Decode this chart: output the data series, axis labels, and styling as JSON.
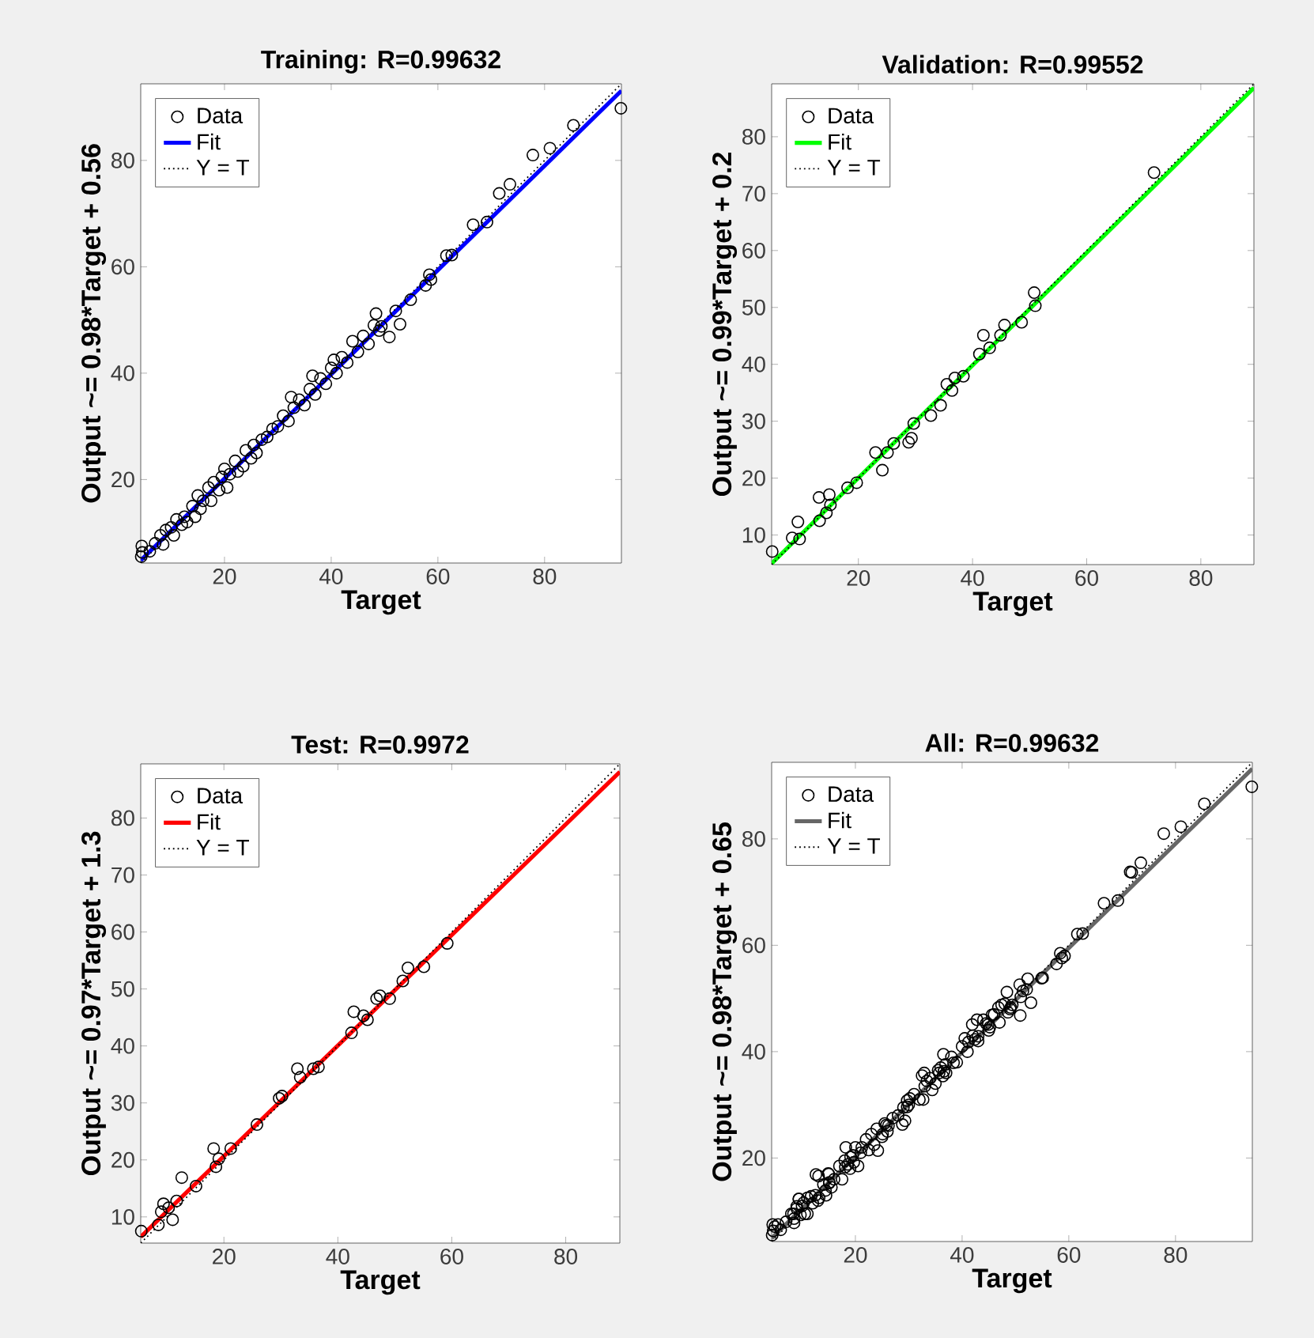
{
  "chart_data": [
    {
      "type": "scatter",
      "title": "Training: R=0.99632",
      "xlabel": "Target",
      "ylabel": "Output ~= 0.98*Target + 0.56",
      "xlim": [
        4.3,
        94.4
      ],
      "ylim": [
        4.3,
        94.4
      ],
      "xticks": [
        20,
        40,
        60,
        80
      ],
      "yticks": [
        20,
        40,
        60,
        80
      ],
      "legend": "top left",
      "series": [
        {
          "name": "Data",
          "type": "scatter",
          "marker": "circle",
          "color": "#000000",
          "x": [
            4.4,
            4.5,
            4.6,
            6,
            7,
            8,
            8.5,
            9,
            10,
            10.5,
            11,
            12,
            12.5,
            13,
            14,
            14.5,
            15,
            15.5,
            16,
            17,
            17.5,
            18,
            19,
            19.5,
            20,
            20.5,
            21,
            22,
            22.5,
            23.5,
            24,
            25,
            25.5,
            26,
            27,
            28,
            29,
            30,
            31,
            32,
            32.5,
            33,
            34,
            35,
            36,
            36.5,
            37,
            38,
            39,
            40,
            40.5,
            41,
            42,
            43,
            44,
            45,
            46,
            47,
            48,
            49,
            48.4,
            49.4,
            50.9,
            52.1,
            52.9,
            54.9,
            57.7,
            58.4,
            58.7,
            61.6,
            62.6,
            66.6,
            69.2,
            71.5,
            73.5,
            77.8,
            81,
            85.4,
            94.3
          ],
          "values": [
            5.5,
            7.5,
            6.3,
            6.5,
            8,
            9.5,
            7.8,
            10.5,
            11,
            9.5,
            12.5,
            11.5,
            13,
            12,
            15,
            13,
            17,
            14.5,
            16,
            18.5,
            16,
            19.5,
            18,
            20.5,
            22,
            18.5,
            21,
            23.5,
            21.5,
            22.5,
            25.5,
            24,
            26.5,
            25,
            27.5,
            28,
            29.5,
            30,
            32,
            31,
            35.5,
            33.5,
            35,
            34,
            37,
            39.5,
            36,
            39,
            38,
            41,
            42.5,
            40,
            43,
            42,
            46,
            44,
            47,
            45.5,
            49,
            48,
            51.2,
            48.8,
            46.8,
            51.7,
            49.2,
            53.8,
            56.5,
            58.5,
            57.6,
            62.1,
            62.2,
            67.9,
            68.4,
            73.8,
            75.5,
            81,
            82.3,
            86.6,
            89.8
          ]
        },
        {
          "name": "Fit",
          "type": "line",
          "line_style": "solid",
          "color": "#0000ff",
          "x": [
            4.3,
            94.4
          ],
          "values": [
            4.8,
            93.1
          ]
        },
        {
          "name": "Y = T",
          "type": "line",
          "line_style": "dotted",
          "color": "#000000",
          "x": [
            4.3,
            94.4
          ],
          "values": [
            4.3,
            94.4
          ]
        }
      ]
    },
    {
      "type": "scatter",
      "title": "Validation: R=0.99552",
      "xlabel": "Target",
      "ylabel": "Output ~= 0.99*Target + 0.2",
      "xlim": [
        4.8,
        89.3
      ],
      "ylim": [
        4.8,
        89.3
      ],
      "xticks": [
        20,
        40,
        60,
        80
      ],
      "yticks": [
        10,
        20,
        30,
        40,
        50,
        60,
        70,
        80
      ],
      "legend": "top left",
      "series": [
        {
          "name": "Data",
          "type": "scatter",
          "marker": "circle",
          "color": "#000000",
          "x": [
            4.9,
            8.4,
            9.4,
            9.7,
            13.1,
            13.2,
            14.9,
            14.4,
            15.1,
            18.1,
            19.7,
            23,
            24.2,
            25.1,
            26.2,
            28.8,
            29.3,
            29.7,
            32.7,
            34.4,
            35.5,
            36.4,
            36.9,
            38.4,
            41.2,
            41.9,
            43,
            44.9,
            45.6,
            48.6,
            50.8,
            51,
            71.8
          ],
          "values": [
            7.1,
            9.5,
            12.3,
            9.3,
            16.6,
            12.5,
            17.1,
            13.9,
            15.3,
            18.3,
            19.2,
            24.5,
            21.4,
            24.5,
            26.1,
            26.3,
            27,
            29.6,
            31,
            32.8,
            36.5,
            35.4,
            37.6,
            37.9,
            41.8,
            45.1,
            42.9,
            45.1,
            46.9,
            47.4,
            52.6,
            50.3,
            73.7
          ]
        },
        {
          "name": "Fit",
          "type": "line",
          "line_style": "solid",
          "color": "#00ff00",
          "x": [
            4.8,
            89.3
          ],
          "values": [
            5,
            88.6
          ]
        },
        {
          "name": "Y = T",
          "type": "line",
          "line_style": "dotted",
          "color": "#000000",
          "x": [
            4.8,
            89.3
          ],
          "values": [
            4.8,
            89.3
          ]
        }
      ]
    },
    {
      "type": "scatter",
      "title": "Test: R=0.9972",
      "xlabel": "Target",
      "ylabel": "Output ~= 0.97*Target + 1.3",
      "xlim": [
        5.4,
        89.5
      ],
      "ylim": [
        5.4,
        89.5
      ],
      "xticks": [
        20,
        40,
        60,
        80
      ],
      "yticks": [
        10,
        20,
        30,
        40,
        50,
        60,
        70,
        80
      ],
      "legend": "top left",
      "series": [
        {
          "name": "Data",
          "type": "scatter",
          "marker": "circle",
          "color": "#000000",
          "x": [
            5.5,
            8.5,
            9,
            9.4,
            10.3,
            11,
            11.7,
            12.6,
            15.1,
            18.2,
            18.6,
            19.1,
            21.2,
            25.8,
            29.7,
            30.2,
            32.9,
            33.4,
            35.7,
            36.6,
            42.4,
            42.8,
            44.5,
            45.2,
            46.8,
            47.4,
            49.1,
            51.4,
            52.3,
            55.1,
            59.2
          ],
          "values": [
            7.5,
            8.6,
            10.9,
            12.3,
            11.6,
            9.5,
            12.8,
            16.9,
            15.4,
            22,
            18.8,
            20.2,
            22,
            26.2,
            30.8,
            31.2,
            36,
            34.5,
            36,
            36.3,
            42.3,
            46,
            45.3,
            44.6,
            48.3,
            48.8,
            48.3,
            51.4,
            53.7,
            53.9,
            58
          ]
        },
        {
          "name": "Fit",
          "type": "line",
          "line_style": "solid",
          "color": "#ff0000",
          "x": [
            5.4,
            89.5
          ],
          "values": [
            6.5,
            88.1
          ]
        },
        {
          "name": "Y = T",
          "type": "line",
          "line_style": "dotted",
          "color": "#000000",
          "x": [
            5.4,
            89.5
          ],
          "values": [
            5.4,
            89.5
          ]
        }
      ]
    },
    {
      "type": "scatter",
      "title": "All: R=0.99632",
      "xlabel": "Target",
      "ylabel": "Output ~= 0.98*Target + 0.65",
      "xlim": [
        4.3,
        94.4
      ],
      "ylim": [
        4.3,
        94.4
      ],
      "xticks": [
        20,
        40,
        60,
        80
      ],
      "yticks": [
        20,
        40,
        60,
        80
      ],
      "legend": "top left",
      "series": [
        {
          "name": "Data",
          "type": "scatter",
          "marker": "circle",
          "color": "#000000",
          "x": [
            4.4,
            4.5,
            4.6,
            6,
            7,
            8,
            8.5,
            9,
            10,
            10.5,
            11,
            12,
            12.5,
            13,
            14,
            14.5,
            15,
            15.5,
            16,
            17,
            17.5,
            18,
            19,
            19.5,
            20,
            20.5,
            21,
            22,
            22.5,
            23.5,
            24,
            25,
            25.5,
            26,
            27,
            28,
            29,
            30,
            31,
            32,
            32.5,
            33,
            34,
            35,
            36,
            36.5,
            37,
            38,
            39,
            40,
            40.5,
            41,
            42,
            43,
            44,
            45,
            46,
            47,
            48,
            49,
            48.4,
            49.4,
            50.9,
            52.1,
            52.9,
            54.9,
            57.7,
            58.4,
            58.7,
            61.6,
            62.6,
            66.6,
            69.2,
            71.5,
            73.5,
            77.8,
            81,
            85.4,
            94.3,
            4.9,
            8.4,
            9.4,
            9.7,
            13.1,
            13.2,
            14.9,
            14.4,
            15.1,
            18.1,
            19.7,
            23,
            24.2,
            25.1,
            26.2,
            28.8,
            29.3,
            29.7,
            32.7,
            34.4,
            35.5,
            36.4,
            36.9,
            38.4,
            41.2,
            41.9,
            43,
            44.9,
            45.6,
            48.6,
            50.8,
            51,
            71.8,
            5.5,
            8.5,
            9,
            9.4,
            10.3,
            11,
            11.7,
            12.6,
            15.1,
            18.2,
            18.6,
            19.1,
            21.2,
            25.8,
            29.7,
            30.2,
            32.9,
            33.4,
            35.7,
            36.6,
            42.4,
            42.8,
            44.5,
            45.2,
            46.8,
            47.4,
            49.1,
            51.4,
            52.3,
            55.1,
            59.2
          ],
          "values": [
            5.5,
            7.5,
            6.3,
            6.5,
            8,
            9.5,
            7.8,
            10.5,
            11,
            9.5,
            12.5,
            11.5,
            13,
            12,
            15,
            13,
            17,
            14.5,
            16,
            18.5,
            16,
            19.5,
            18,
            20.5,
            22,
            18.5,
            21,
            23.5,
            21.5,
            22.5,
            25.5,
            24,
            26.5,
            25,
            27.5,
            28,
            29.5,
            30,
            32,
            31,
            35.5,
            33.5,
            35,
            34,
            37,
            39.5,
            36,
            39,
            38,
            41,
            42.5,
            40,
            43,
            42,
            46,
            44,
            47,
            45.5,
            49,
            48,
            51.2,
            48.8,
            46.8,
            51.7,
            49.2,
            53.8,
            56.5,
            58.5,
            57.6,
            62.1,
            62.2,
            67.9,
            68.4,
            73.8,
            75.5,
            81,
            82.3,
            86.6,
            89.8,
            7.1,
            9.5,
            12.3,
            9.3,
            16.6,
            12.5,
            17.1,
            13.9,
            15.3,
            18.3,
            19.2,
            24.5,
            21.4,
            24.5,
            26.1,
            26.3,
            27,
            29.6,
            31,
            32.8,
            36.5,
            35.4,
            37.6,
            37.9,
            41.8,
            45.1,
            42.9,
            45.1,
            46.9,
            47.4,
            52.6,
            50.3,
            73.7,
            7.5,
            8.6,
            10.9,
            12.3,
            11.6,
            9.5,
            12.8,
            16.9,
            15.4,
            22,
            18.8,
            20.2,
            22,
            26.2,
            30.8,
            31.2,
            36,
            34.5,
            36,
            36.3,
            42.3,
            46,
            45.3,
            44.6,
            48.3,
            48.8,
            48.3,
            51.4,
            53.7,
            53.9,
            58
          ]
        },
        {
          "name": "Fit",
          "type": "line",
          "line_style": "solid",
          "color": "#666666",
          "x": [
            4.3,
            94.4
          ],
          "values": [
            4.9,
            93.2
          ]
        },
        {
          "name": "Y = T",
          "type": "line",
          "line_style": "dotted",
          "color": "#000000",
          "x": [
            4.3,
            94.4
          ],
          "values": [
            4.3,
            94.4
          ]
        }
      ]
    }
  ]
}
